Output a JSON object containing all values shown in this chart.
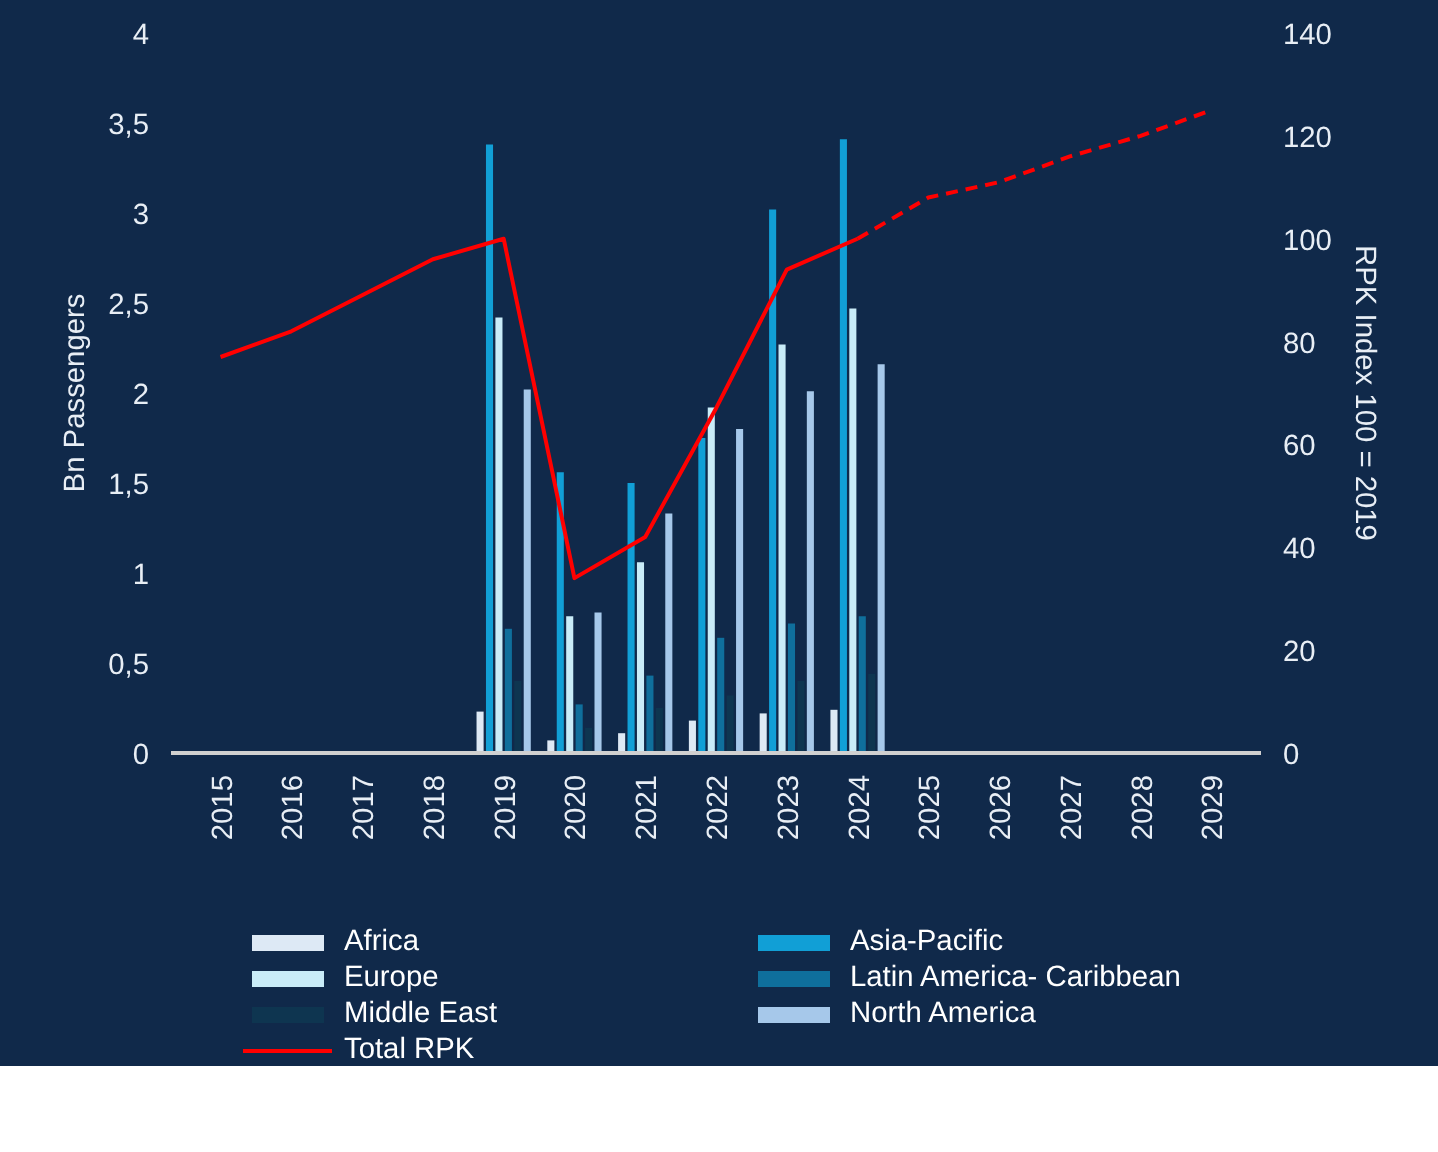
{
  "chart_data": {
    "type": "bar",
    "categories": [
      "2015",
      "2016",
      "2017",
      "2018",
      "2019",
      "2020",
      "2021",
      "2022",
      "2023",
      "2024",
      "2025",
      "2026",
      "2027",
      "2028",
      "2029"
    ],
    "ylabel": "Bn Passengers",
    "y2label": "RPK Index 100 = 2019",
    "ylim": [
      0,
      4
    ],
    "yticks": [
      0,
      {
        "value": 0.5,
        "label": "0,5"
      },
      1,
      {
        "value": 1.5,
        "label": "1,5"
      },
      2,
      {
        "value": 2.5,
        "label": "2,5"
      },
      3,
      {
        "value": 3.5,
        "label": "3,5"
      },
      4
    ],
    "y2lim": [
      0,
      140
    ],
    "y2ticks": [
      0,
      20,
      40,
      60,
      80,
      100,
      120,
      140
    ],
    "grid": false,
    "legend": "bottom",
    "series": [
      {
        "name": "Africa",
        "color": "#dde9f5",
        "values": [
          null,
          null,
          null,
          null,
          0.23,
          0.07,
          0.11,
          0.18,
          0.22,
          0.24,
          null,
          null,
          null,
          null,
          null
        ]
      },
      {
        "name": "Asia-Pacific",
        "color": "#119fd6",
        "values": [
          null,
          null,
          null,
          null,
          3.38,
          1.56,
          1.5,
          1.75,
          3.02,
          3.41,
          null,
          null,
          null,
          null,
          null
        ]
      },
      {
        "name": "Europe",
        "color": "#c9ecf8",
        "values": [
          null,
          null,
          null,
          null,
          2.42,
          0.76,
          1.06,
          1.92,
          2.27,
          2.47,
          null,
          null,
          null,
          null,
          null
        ]
      },
      {
        "name": "Latin America- Caribbean",
        "color": "#0f6f9c",
        "values": [
          null,
          null,
          null,
          null,
          0.69,
          0.27,
          0.43,
          0.64,
          0.72,
          0.76,
          null,
          null,
          null,
          null,
          null
        ]
      },
      {
        "name": "Middle East",
        "color": "#0e3550",
        "values": [
          null,
          null,
          null,
          null,
          0.4,
          0.14,
          0.25,
          0.32,
          0.4,
          0.44,
          null,
          null,
          null,
          null,
          null
        ]
      },
      {
        "name": "North America",
        "color": "#a6c8ea",
        "values": [
          null,
          null,
          null,
          null,
          2.02,
          0.78,
          1.33,
          1.8,
          2.01,
          2.16,
          null,
          null,
          null,
          null,
          null
        ]
      },
      {
        "name": "Total RPK",
        "type": "line",
        "axis": "y2",
        "color": "#ff0000",
        "line_style": "solid",
        "values": [
          77,
          82,
          89,
          96,
          100,
          34,
          42,
          67,
          94,
          100,
          null,
          null,
          null,
          null,
          null
        ]
      },
      {
        "type": "line",
        "axis": "y2",
        "color": "#ff0000",
        "line_style": "dashed",
        "values": [
          null,
          null,
          null,
          null,
          null,
          null,
          null,
          null,
          null,
          100,
          108,
          111,
          116,
          120,
          125
        ]
      }
    ]
  }
}
